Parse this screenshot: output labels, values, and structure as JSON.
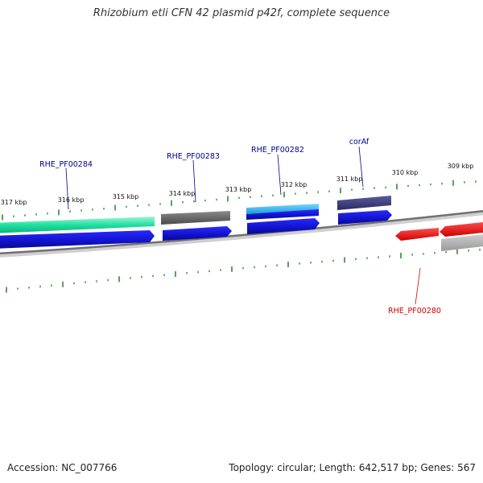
{
  "title": "Rhizobium etli CFN 42 plasmid p42f, complete sequence",
  "footer": {
    "accession": "Accession: NC_007766",
    "summary": "Topology: circular; Length: 642,517 bp; Genes: 567"
  },
  "colors": {
    "backbone": "#808080",
    "tick": "#2e8b2e",
    "label_forward": "#00008b",
    "label_reverse": "#cc0000",
    "cds_blue": "#1111cc",
    "cds_green": "#20e0a0",
    "cds_gray": "#666666",
    "cds_cyan": "#22bbee",
    "cds_purple": "#3a3a7a",
    "cds_red": "#ee1111",
    "cds_lightgray": "#aaaaaa"
  },
  "axis": {
    "unit": "kbp",
    "outer_labels": [
      "317 kbp",
      "316 kbp",
      "315 kbp",
      "314 kbp",
      "313 kbp",
      "312 kbp",
      "311 kbp",
      "310 kbp",
      "309 kbp"
    ]
  },
  "genes": [
    {
      "name": "RHE_PF00284",
      "strand": "forward"
    },
    {
      "name": "RHE_PF00283",
      "strand": "forward"
    },
    {
      "name": "RHE_PF00282",
      "strand": "forward"
    },
    {
      "name": "corAf",
      "strand": "forward"
    },
    {
      "name": "RHE_PF00280",
      "strand": "reverse"
    }
  ]
}
